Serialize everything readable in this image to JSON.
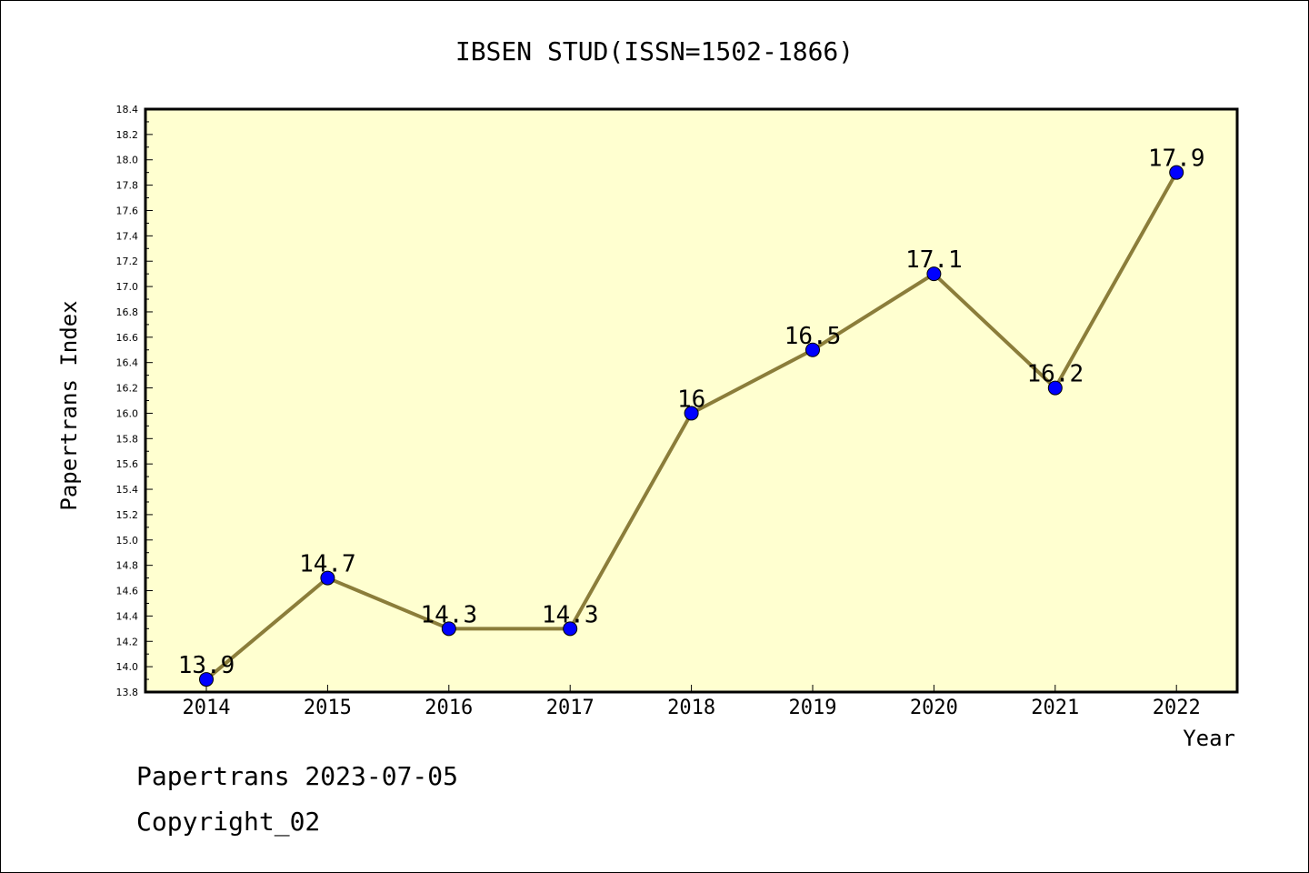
{
  "chart_data": {
    "type": "line",
    "title": "IBSEN STUD(ISSN=1502-1866)",
    "xlabel": "Year",
    "ylabel": "Papertrans Index",
    "categories": [
      "2014",
      "2015",
      "2016",
      "2017",
      "2018",
      "2019",
      "2020",
      "2021",
      "2022"
    ],
    "series": [
      {
        "values": [
          13.9,
          14.7,
          14.3,
          14.3,
          16.0,
          16.5,
          17.1,
          16.2,
          17.9
        ],
        "data_labels": [
          "13.9",
          "14.7",
          "14.3",
          "14.3",
          "16",
          "16.5",
          "17.1",
          "16.2",
          "17.9"
        ],
        "line_color": "#8b7d3a",
        "marker_color": "#0000ff"
      }
    ],
    "ylim": [
      13.8,
      18.4
    ],
    "yticks": [
      "13.8",
      "14.0",
      "14.2",
      "14.4",
      "14.6",
      "14.8",
      "15.0",
      "15.2",
      "15.4",
      "15.6",
      "15.8",
      "16.0",
      "16.2",
      "16.4",
      "16.6",
      "16.8",
      "17.0",
      "17.2",
      "17.4",
      "17.6",
      "17.8",
      "18.0",
      "18.2",
      "18.4"
    ],
    "grid": false,
    "plot_background": "#ffffd0"
  },
  "footer": {
    "line1": "Papertrans 2023-07-05",
    "line2": "Copyright_02"
  }
}
